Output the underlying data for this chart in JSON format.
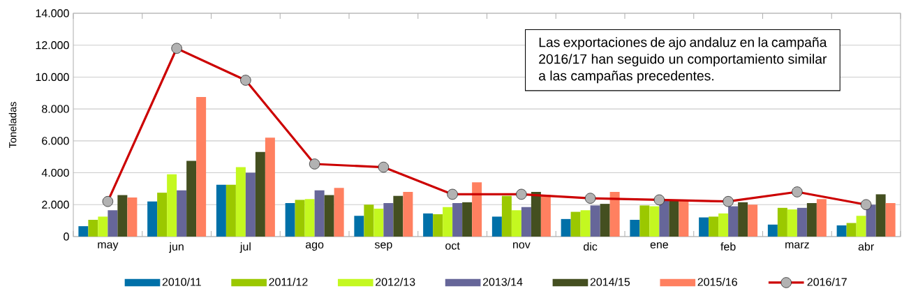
{
  "chart_data": {
    "type": "bar",
    "ylabel": "Toneladas",
    "categories": [
      "may",
      "jun",
      "jul",
      "ago",
      "sep",
      "oct",
      "nov",
      "dic",
      "ene",
      "feb",
      "marz",
      "abr"
    ],
    "series": [
      {
        "name": "2010/11",
        "color": "#0070a8",
        "values": [
          650,
          2200,
          3250,
          2100,
          1300,
          1450,
          1250,
          1100,
          1050,
          1200,
          750,
          700
        ]
      },
      {
        "name": "2011/12",
        "color": "#9bc800",
        "values": [
          1050,
          2750,
          3250,
          2300,
          2000,
          1400,
          2550,
          1550,
          1950,
          1250,
          1800,
          850
        ]
      },
      {
        "name": "2012/13",
        "color": "#c4f820",
        "values": [
          1250,
          3900,
          4350,
          2350,
          1750,
          1850,
          1650,
          1650,
          1900,
          1450,
          1700,
          1300
        ]
      },
      {
        "name": "2013/14",
        "color": "#666699",
        "values": [
          1650,
          2900,
          4000,
          2900,
          2100,
          2100,
          1850,
          1950,
          2250,
          1900,
          1800,
          2000
        ]
      },
      {
        "name": "2014/15",
        "color": "#444f20",
        "values": [
          2600,
          4750,
          5300,
          2600,
          2550,
          2150,
          2800,
          2050,
          2250,
          2150,
          2100,
          2650
        ]
      },
      {
        "name": "2015/16",
        "color": "#ff8060",
        "values": [
          2450,
          8750,
          6200,
          3050,
          2800,
          3400,
          2600,
          2800,
          2250,
          2000,
          2350,
          2100
        ]
      },
      {
        "name": "2016/17",
        "color": "#cc0000",
        "type": "line",
        "marker": "circle",
        "values": [
          2200,
          11800,
          9800,
          4550,
          4350,
          2650,
          2650,
          2400,
          2300,
          2200,
          2800,
          2000
        ]
      }
    ],
    "ylim": [
      0,
      14000
    ],
    "yticks": [
      0,
      {
        "value": 2000,
        "label": "2.000"
      },
      {
        "value": 4000,
        "label": "4.000"
      },
      {
        "value": 6000,
        "label": "6.000"
      },
      {
        "value": 8000,
        "label": "8.000"
      },
      {
        "value": 10000,
        "label": "10.000"
      },
      {
        "value": 12000,
        "label": "12.000"
      },
      {
        "value": 14000,
        "label": "14.000"
      }
    ],
    "grid": "y",
    "legend": "bottom",
    "annotations": [
      "Las exportaciones de ajo andaluz en la campaña 2016/17 han seguido un comportamiento similar a las campañas precedentes."
    ]
  }
}
